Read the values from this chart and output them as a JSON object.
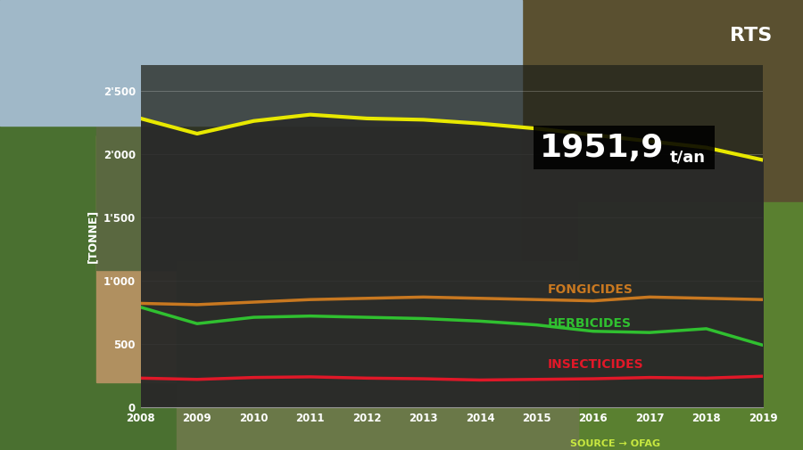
{
  "years": [
    2008,
    2009,
    2010,
    2011,
    2012,
    2013,
    2014,
    2015,
    2016,
    2017,
    2018,
    2019
  ],
  "total": [
    2280,
    2160,
    2260,
    2310,
    2280,
    2270,
    2240,
    2200,
    2150,
    2100,
    2050,
    1952
  ],
  "fongicides": [
    820,
    810,
    830,
    850,
    860,
    870,
    860,
    850,
    840,
    870,
    860,
    850
  ],
  "herbicides": [
    790,
    660,
    710,
    720,
    710,
    700,
    680,
    650,
    600,
    590,
    620,
    490
  ],
  "insecticides": [
    230,
    220,
    235,
    240,
    230,
    225,
    215,
    220,
    225,
    235,
    230,
    245
  ],
  "total_color": "#e8e800",
  "fongicides_color": "#c87820",
  "herbicides_color": "#30c030",
  "insecticides_color": "#e01828",
  "fill_color": "#2a2a2a",
  "bg_photo_color": "#6b7a5a",
  "bg_left_color": "#4a6030",
  "bg_right_color": "#5a7040",
  "overlay_color": "#1e2018",
  "overlay_alpha": 0.72,
  "yticks": [
    0,
    500,
    1000,
    1500,
    2000,
    2500
  ],
  "ytick_labels": [
    "0",
    "500",
    "1'000",
    "1'500",
    "2'000",
    "2'500"
  ],
  "ylabel": "[TONNE]",
  "annotation_value": "1951,9",
  "annotation_unit": "t/an",
  "source_text": "SOURCE → OFAG",
  "rts_text": "RTS",
  "line_width": 2.5,
  "grid_color": "#ffffff",
  "grid_alpha": 0.25,
  "axis_text_color": "#ffffff",
  "fongicides_label": "FONGICIDES",
  "herbicides_label": "HERBICIDES",
  "insecticides_label": "INSECTICIDES"
}
